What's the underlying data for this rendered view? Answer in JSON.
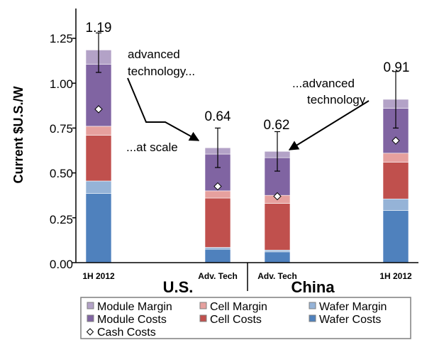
{
  "chart_data": {
    "type": "bar",
    "stacked": true,
    "ylabel": "Current  $U.S./W",
    "ylim": [
      0,
      1.25
    ],
    "y_ticks": [
      "0.00",
      "0.25",
      "0.50",
      "0.75",
      "1.00",
      "1.25"
    ],
    "categories": [
      "1H 2012",
      "Adv. Tech",
      "Adv. Tech",
      "1H 2012"
    ],
    "groups": [
      "U.S.",
      "China"
    ],
    "series": [
      {
        "name": "Wafer Costs",
        "color": "#4f81bd",
        "values": [
          0.385,
          0.075,
          0.06,
          0.29
        ]
      },
      {
        "name": "Wafer Margin",
        "color": "#95b3d7",
        "values": [
          0.07,
          0.01,
          0.01,
          0.065
        ]
      },
      {
        "name": "Cell Costs",
        "color": "#c0504d",
        "values": [
          0.255,
          0.275,
          0.26,
          0.205
        ]
      },
      {
        "name": "Cell Margin",
        "color": "#e6a09e",
        "values": [
          0.05,
          0.04,
          0.045,
          0.05
        ]
      },
      {
        "name": "Module Costs",
        "color": "#8064a2",
        "values": [
          0.345,
          0.205,
          0.21,
          0.25
        ]
      },
      {
        "name": "Module Margin",
        "color": "#b3a2c7",
        "values": [
          0.08,
          0.035,
          0.035,
          0.05
        ]
      }
    ],
    "totals": [
      "1.19",
      "0.64",
      "0.62",
      "0.91"
    ],
    "totals_values": [
      1.185,
      0.64,
      0.62,
      0.91
    ],
    "error_bars": [
      {
        "low": 1.06,
        "high": 1.28
      },
      {
        "low": 0.53,
        "high": 0.75
      },
      {
        "low": 0.51,
        "high": 0.73
      },
      {
        "low": 0.75,
        "high": 1.065
      }
    ],
    "cash_costs": {
      "name": "Cash Costs",
      "values": [
        0.855,
        0.425,
        0.37,
        0.68
      ]
    },
    "annotations": {
      "us_left": [
        "advanced",
        "technology..."
      ],
      "us_right": "...at scale",
      "china": [
        "...advanced",
        "technology"
      ]
    },
    "legend": {
      "rows": [
        [
          "Module Margin",
          "Cell Margin",
          "Wafer Margin"
        ],
        [
          "Module Costs",
          "Cell Costs",
          "Wafer Costs"
        ],
        [
          "Cash Costs"
        ]
      ]
    }
  }
}
